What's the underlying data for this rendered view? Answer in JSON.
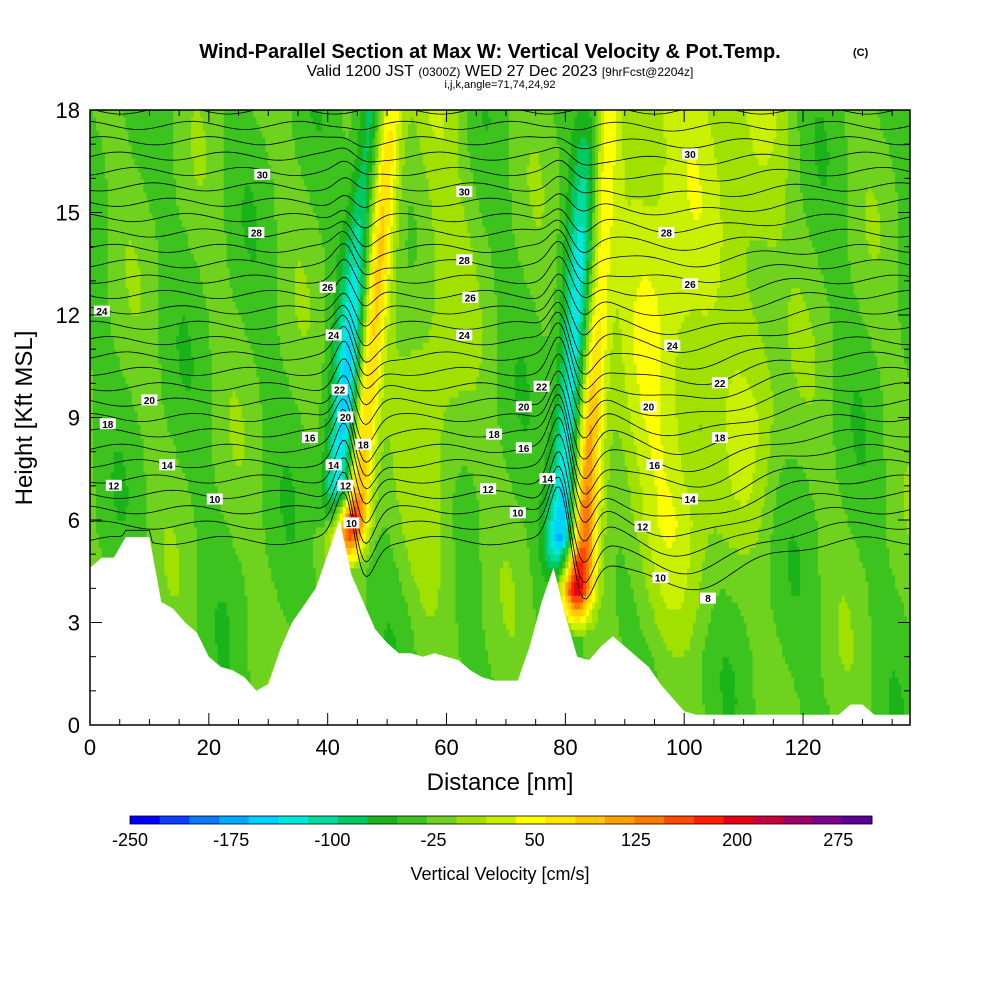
{
  "chart_data": {
    "type": "heatmap",
    "title": "Wind-Parallel Section at Max W: Vertical Velocity & Pot.Temp.",
    "title_mark": "(C)",
    "subtitle": {
      "main_a": "Valid 1200 JST",
      "utc": "(0300Z)",
      "main_b": "WED 27 Dec 2023",
      "forecast": "[9hrFcst@2204z]"
    },
    "indices": "i,j,k,angle=71,74,24,92",
    "xlabel": "Distance [nm]",
    "ylabel": "Height [Kft MSL]",
    "xlim": [
      0,
      138
    ],
    "ylim": [
      0,
      18
    ],
    "x_ticks": [
      0,
      20,
      40,
      60,
      80,
      100,
      120
    ],
    "y_ticks": [
      0,
      3,
      6,
      9,
      12,
      15,
      18
    ],
    "colorbar": {
      "label": "Vertical Velocity [cm/s]",
      "range": [
        -250,
        300
      ],
      "step": 25,
      "tick_labels": [
        "-250",
        "-175",
        "-100",
        "-25",
        "50",
        "125",
        "200",
        "275"
      ],
      "colors": [
        "#0000ff",
        "#0a3dff",
        "#0a78ff",
        "#00aaff",
        "#00d2ff",
        "#00e8e0",
        "#00dca0",
        "#00c864",
        "#1ab41a",
        "#3cc31e",
        "#6ed21e",
        "#a0e100",
        "#c8f000",
        "#ffff00",
        "#ffe600",
        "#ffc800",
        "#ffa000",
        "#ff7800",
        "#ff4b00",
        "#ff1e00",
        "#e60014",
        "#c8003c",
        "#a00064",
        "#7d008c",
        "#5a0096"
      ]
    },
    "terrain": [
      [
        0,
        4.6
      ],
      [
        2,
        4.9
      ],
      [
        4,
        4.9
      ],
      [
        6,
        5.5
      ],
      [
        10,
        5.5
      ],
      [
        12,
        3.6
      ],
      [
        14,
        3.4
      ],
      [
        16,
        3.0
      ],
      [
        18,
        2.7
      ],
      [
        20,
        2.0
      ],
      [
        22,
        1.7
      ],
      [
        24,
        1.6
      ],
      [
        26,
        1.4
      ],
      [
        28,
        1.0
      ],
      [
        30,
        1.2
      ],
      [
        32,
        2.2
      ],
      [
        34,
        3.0
      ],
      [
        36,
        3.5
      ],
      [
        38,
        4.0
      ],
      [
        40,
        5.0
      ],
      [
        42,
        6.0
      ],
      [
        44,
        4.4
      ],
      [
        46,
        3.6
      ],
      [
        48,
        2.8
      ],
      [
        50,
        2.4
      ],
      [
        52,
        2.1
      ],
      [
        54,
        2.1
      ],
      [
        56,
        2.0
      ],
      [
        58,
        2.1
      ],
      [
        60,
        2.0
      ],
      [
        62,
        1.9
      ],
      [
        64,
        1.6
      ],
      [
        66,
        1.4
      ],
      [
        68,
        1.3
      ],
      [
        70,
        1.3
      ],
      [
        72,
        1.3
      ],
      [
        74,
        2.3
      ],
      [
        76,
        3.6
      ],
      [
        78,
        4.6
      ],
      [
        80,
        3.2
      ],
      [
        82,
        2.0
      ],
      [
        84,
        1.9
      ],
      [
        86,
        2.3
      ],
      [
        88,
        2.6
      ],
      [
        90,
        2.3
      ],
      [
        92,
        2.0
      ],
      [
        94,
        1.7
      ],
      [
        96,
        1.2
      ],
      [
        98,
        0.8
      ],
      [
        100,
        0.4
      ],
      [
        102,
        0.3
      ],
      [
        106,
        0.3
      ],
      [
        110,
        0.3
      ],
      [
        114,
        0.3
      ],
      [
        118,
        0.3
      ],
      [
        122,
        0.3
      ],
      [
        126,
        0.3
      ],
      [
        128,
        0.6
      ],
      [
        130,
        0.6
      ],
      [
        132,
        0.3
      ],
      [
        138,
        0.3
      ]
    ],
    "updrafts": [
      {
        "x0": 43.5,
        "x1": 50.0,
        "y0": 4.5,
        "y1": 18,
        "w": 2.6,
        "amp": 280
      },
      {
        "x0": 81.5,
        "x1": 86.5,
        "y0": 2.5,
        "y1": 18,
        "w": 2.6,
        "amp": 270
      }
    ],
    "downdrafts": [
      {
        "x0": 42.0,
        "x1": 49.0,
        "y0": 5.5,
        "y1": 18,
        "w": 3.0,
        "amp": -230
      },
      {
        "x0": 79.5,
        "x1": 86.0,
        "y0": 4.0,
        "y1": 18,
        "w": 3.0,
        "amp": -240
      }
    ],
    "contour_labels": [
      {
        "text": "30",
        "x": 29,
        "y": 16.1
      },
      {
        "text": "30",
        "x": 63,
        "y": 15.6
      },
      {
        "text": "30",
        "x": 101,
        "y": 16.7
      },
      {
        "text": "28",
        "x": 28,
        "y": 14.4
      },
      {
        "text": "28",
        "x": 63,
        "y": 13.6
      },
      {
        "text": "28",
        "x": 97,
        "y": 14.4
      },
      {
        "text": "26",
        "x": 40,
        "y": 12.8
      },
      {
        "text": "26",
        "x": 64,
        "y": 12.5
      },
      {
        "text": "26",
        "x": 101,
        "y": 12.9
      },
      {
        "text": "24",
        "x": 2,
        "y": 12.1
      },
      {
        "text": "24",
        "x": 41,
        "y": 11.4
      },
      {
        "text": "24",
        "x": 63,
        "y": 11.4
      },
      {
        "text": "24",
        "x": 98,
        "y": 11.1
      },
      {
        "text": "22",
        "x": 42,
        "y": 9.8
      },
      {
        "text": "22",
        "x": 76,
        "y": 9.9
      },
      {
        "text": "22",
        "x": 106,
        "y": 10.0
      },
      {
        "text": "20",
        "x": 10,
        "y": 9.5
      },
      {
        "text": "20",
        "x": 43,
        "y": 9.0
      },
      {
        "text": "20",
        "x": 73,
        "y": 9.3
      },
      {
        "text": "20",
        "x": 94,
        "y": 9.3
      },
      {
        "text": "18",
        "x": 3,
        "y": 8.8
      },
      {
        "text": "18",
        "x": 46,
        "y": 8.2
      },
      {
        "text": "18",
        "x": 68,
        "y": 8.5
      },
      {
        "text": "18",
        "x": 106,
        "y": 8.4
      },
      {
        "text": "16",
        "x": 37,
        "y": 8.4
      },
      {
        "text": "16",
        "x": 73,
        "y": 8.1
      },
      {
        "text": "16",
        "x": 95,
        "y": 7.6
      },
      {
        "text": "14",
        "x": 13,
        "y": 7.6
      },
      {
        "text": "14",
        "x": 41,
        "y": 7.6
      },
      {
        "text": "14",
        "x": 77,
        "y": 7.2
      },
      {
        "text": "14",
        "x": 101,
        "y": 6.6
      },
      {
        "text": "12",
        "x": 4,
        "y": 7.0
      },
      {
        "text": "12",
        "x": 43,
        "y": 7.0
      },
      {
        "text": "12",
        "x": 67,
        "y": 6.9
      },
      {
        "text": "12",
        "x": 93,
        "y": 5.8
      },
      {
        "text": "10",
        "x": 21,
        "y": 6.6
      },
      {
        "text": "10",
        "x": 44,
        "y": 5.9
      },
      {
        "text": "10",
        "x": 72,
        "y": 6.2
      },
      {
        "text": "10",
        "x": 96,
        "y": 4.3
      },
      {
        "text": "8",
        "x": 104,
        "y": 3.7
      }
    ]
  }
}
